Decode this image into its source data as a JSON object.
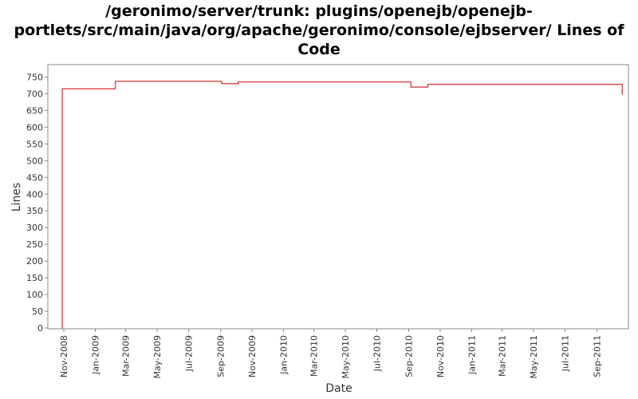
{
  "chart_data": {
    "type": "line",
    "title_lines": [
      "/geronimo/server/trunk: plugins/openejb/openejb-",
      "portlets/src/main/java/org/apache/geronimo/console/ejbserver/ Lines of",
      "Code"
    ],
    "xlabel": "Date",
    "ylabel": "Lines",
    "xlim": [
      "2008-10-01",
      "2011-11-01"
    ],
    "ylim": [
      0,
      775
    ],
    "y_ticks": [
      0,
      50,
      100,
      150,
      200,
      250,
      300,
      350,
      400,
      450,
      500,
      550,
      600,
      650,
      700,
      750
    ],
    "x_ticks": [
      {
        "date": "2008-11-01",
        "label": "Nov-2008"
      },
      {
        "date": "2009-01-01",
        "label": "Jan-2009"
      },
      {
        "date": "2009-03-01",
        "label": "Mar-2009"
      },
      {
        "date": "2009-05-01",
        "label": "May-2009"
      },
      {
        "date": "2009-07-01",
        "label": "Jul-2009"
      },
      {
        "date": "2009-09-01",
        "label": "Sep-2009"
      },
      {
        "date": "2009-11-01",
        "label": "Nov-2009"
      },
      {
        "date": "2010-01-01",
        "label": "Jan-2010"
      },
      {
        "date": "2010-03-01",
        "label": "Mar-2010"
      },
      {
        "date": "2010-05-01",
        "label": "May-2010"
      },
      {
        "date": "2010-07-01",
        "label": "Jul-2010"
      },
      {
        "date": "2010-09-01",
        "label": "Sep-2010"
      },
      {
        "date": "2010-11-01",
        "label": "Nov-2010"
      },
      {
        "date": "2011-01-01",
        "label": "Jan-2011"
      },
      {
        "date": "2011-03-01",
        "label": "Mar-2011"
      },
      {
        "date": "2011-05-01",
        "label": "May-2011"
      },
      {
        "date": "2011-07-01",
        "label": "Jul-2011"
      },
      {
        "date": "2011-09-01",
        "label": "Sep-2011"
      }
    ],
    "series": [
      {
        "step": true,
        "color": "#cc0000",
        "points": [
          {
            "x": "2008-10-28",
            "y": 0
          },
          {
            "x": "2008-10-29",
            "y": 715
          },
          {
            "x": "2009-02-09",
            "y": 737
          },
          {
            "x": "2009-09-03",
            "y": 730
          },
          {
            "x": "2009-10-05",
            "y": 735
          },
          {
            "x": "2010-09-05",
            "y": 720
          },
          {
            "x": "2010-10-08",
            "y": 728
          },
          {
            "x": "2011-10-20",
            "y": 697
          }
        ]
      }
    ],
    "grid": false,
    "legend": "none"
  },
  "colors": {
    "plot_border": "#888888",
    "axis_text": "#333333",
    "series": "#cc0000"
  }
}
